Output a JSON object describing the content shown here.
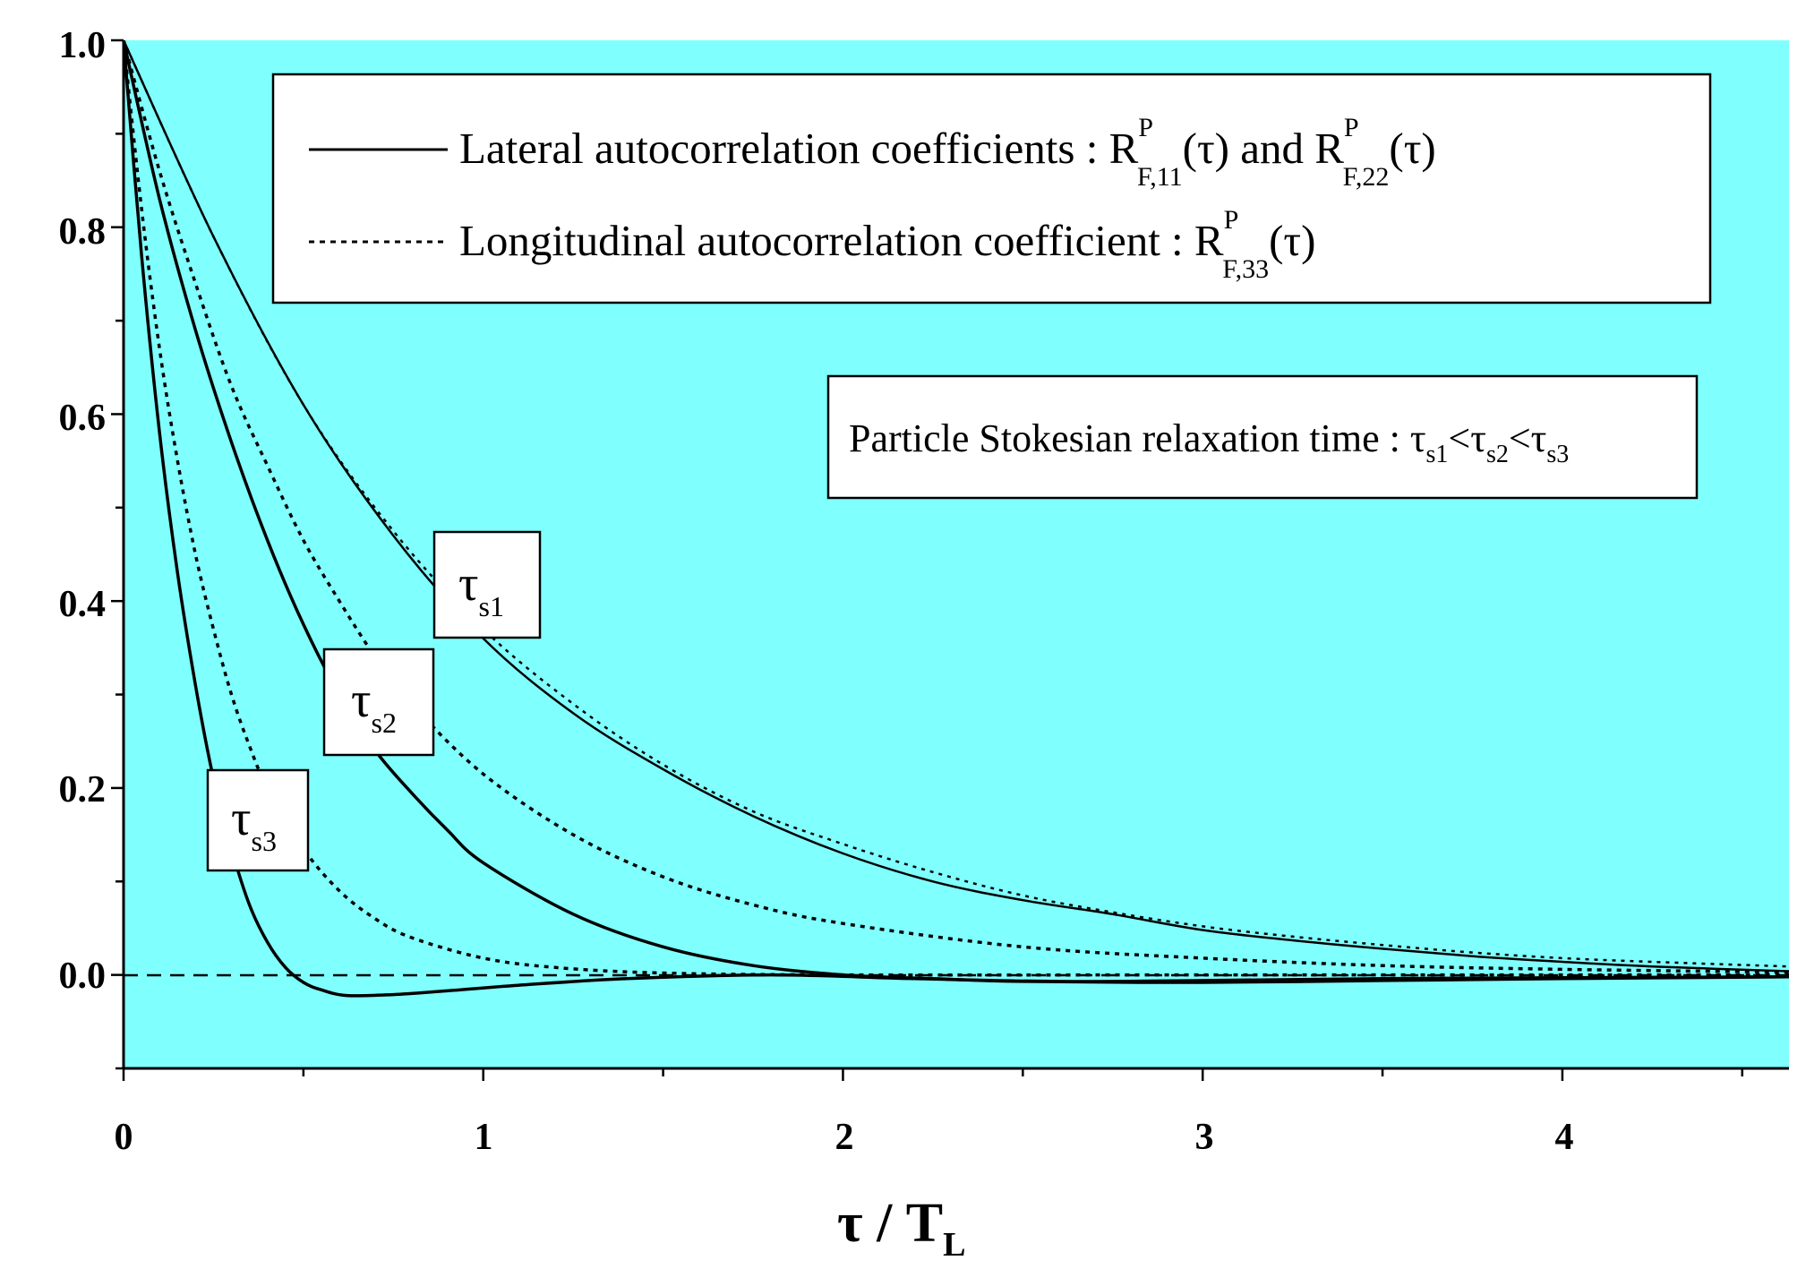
{
  "chart_data": {
    "type": "line",
    "xlabel": {
      "main": "τ / T",
      "sub": "L"
    },
    "ylabel": "",
    "xlim": [
      0,
      4.63
    ],
    "ylim": [
      -0.1,
      1.0
    ],
    "x_ticks": [
      "0",
      "1",
      "2",
      "3",
      "4"
    ],
    "y_ticks": [
      "0.0",
      "0.2",
      "0.4",
      "0.6",
      "0.8",
      "1.0"
    ],
    "background": "#80ffff",
    "legend": {
      "position": "top-right",
      "solid": {
        "text": "Lateral autocorrelation coefficients : ",
        "r1": "R",
        "p1": "P",
        "s1": "F,11",
        "a1": "(τ) and ",
        "r2": "R",
        "p2": "P",
        "s2": "F,22",
        "a2": "(τ)"
      },
      "dotted": {
        "text": "Longitudinal autocorrelation coefficient : ",
        "r": "R",
        "p": "P",
        "s": "F,33",
        "a": "(τ)"
      }
    },
    "relaxation_note": {
      "text": "Particle Stokesian relaxation time : ",
      "t1": "τ",
      "s1": "s1",
      "lt1": "<",
      "t2": "τ",
      "s2": "s2",
      "lt2": "<",
      "t3": "τ",
      "s3": "s3"
    },
    "curve_labels": [
      {
        "tau": "τ",
        "sub": "s1"
      },
      {
        "tau": "τ",
        "sub": "s2"
      },
      {
        "tau": "τ",
        "sub": "s3"
      }
    ],
    "series": [
      {
        "name": "lateral τs1",
        "style": "solid",
        "x": [
          0,
          0.25,
          0.5,
          0.75,
          1.0,
          1.25,
          1.5,
          1.75,
          2.0,
          2.25,
          2.5,
          2.75,
          3.0,
          3.25,
          3.5,
          3.75,
          4.0,
          4.25,
          4.63
        ],
        "y": [
          1.0,
          0.79,
          0.61,
          0.47,
          0.36,
          0.28,
          0.22,
          0.17,
          0.13,
          0.1,
          0.08,
          0.065,
          0.048,
          0.037,
          0.028,
          0.02,
          0.014,
          0.009,
          0.004
        ]
      },
      {
        "name": "longitudinal τs1",
        "style": "dotted",
        "x": [
          0,
          0.25,
          0.5,
          0.75,
          1.0,
          1.25,
          1.5,
          1.75,
          2.0,
          2.25,
          2.5,
          2.75,
          3.0,
          3.25,
          3.5,
          3.75,
          4.0,
          4.25,
          4.63
        ],
        "y": [
          1.0,
          0.79,
          0.61,
          0.475,
          0.37,
          0.29,
          0.225,
          0.175,
          0.14,
          0.11,
          0.085,
          0.067,
          0.052,
          0.041,
          0.032,
          0.024,
          0.018,
          0.014,
          0.009
        ]
      },
      {
        "name": "lateral τs2",
        "style": "solid",
        "x": [
          0,
          0.1,
          0.2,
          0.3,
          0.4,
          0.5,
          0.6,
          0.7,
          0.8,
          0.9,
          1.0,
          1.25,
          1.5,
          1.75,
          2.0,
          2.25,
          2.5,
          3.0,
          3.5,
          4.0,
          4.63
        ],
        "y": [
          1.0,
          0.83,
          0.69,
          0.57,
          0.465,
          0.375,
          0.3,
          0.24,
          0.195,
          0.155,
          0.12,
          0.065,
          0.03,
          0.01,
          0.0,
          -0.004,
          -0.007,
          -0.008,
          -0.006,
          -0.004,
          -0.002
        ]
      },
      {
        "name": "longitudinal τs2",
        "style": "dotted",
        "x": [
          0,
          0.1,
          0.2,
          0.3,
          0.4,
          0.5,
          0.6,
          0.7,
          0.8,
          1.0,
          1.25,
          1.5,
          1.75,
          2.0,
          2.5,
          3.0,
          3.5,
          4.0,
          4.63
        ],
        "y": [
          1.0,
          0.86,
          0.74,
          0.63,
          0.545,
          0.465,
          0.4,
          0.34,
          0.29,
          0.215,
          0.15,
          0.105,
          0.075,
          0.055,
          0.03,
          0.018,
          0.01,
          0.006,
          0.003
        ]
      },
      {
        "name": "lateral τs3",
        "style": "solid",
        "x": [
          0,
          0.05,
          0.1,
          0.15,
          0.2,
          0.25,
          0.3,
          0.35,
          0.4,
          0.45,
          0.5,
          0.55,
          0.62,
          0.75,
          0.9,
          1.1,
          1.4,
          1.8,
          2.2,
          2.6,
          3.0,
          3.5,
          4.0,
          4.63
        ],
        "y": [
          1.0,
          0.77,
          0.58,
          0.43,
          0.31,
          0.21,
          0.135,
          0.075,
          0.035,
          0.008,
          -0.008,
          -0.016,
          -0.022,
          -0.021,
          -0.017,
          -0.011,
          -0.004,
          0.0,
          -0.004,
          -0.007,
          -0.006,
          -0.004,
          -0.003,
          -0.002
        ]
      },
      {
        "name": "longitudinal τs3",
        "style": "dotted",
        "x": [
          0,
          0.05,
          0.1,
          0.15,
          0.2,
          0.25,
          0.3,
          0.35,
          0.4,
          0.5,
          0.6,
          0.7,
          0.8,
          1.0,
          1.2,
          1.5,
          2.0,
          3.0,
          4.0,
          4.63
        ],
        "y": [
          1.0,
          0.82,
          0.67,
          0.55,
          0.45,
          0.37,
          0.3,
          0.245,
          0.2,
          0.135,
          0.09,
          0.06,
          0.04,
          0.018,
          0.008,
          0.002,
          0.0,
          0.0,
          0.0,
          0.0
        ]
      }
    ]
  }
}
